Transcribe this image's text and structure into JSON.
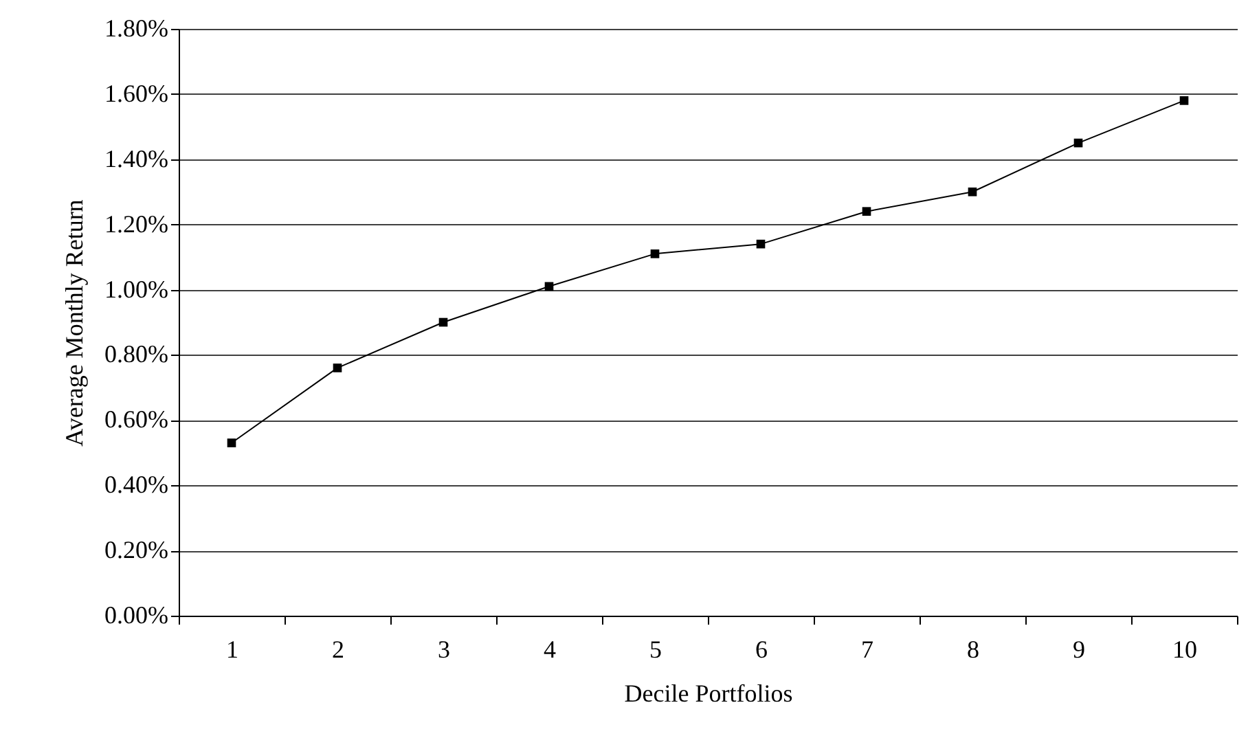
{
  "chart_data": {
    "type": "line",
    "xlabel": "Decile Portfolios",
    "ylabel": "Average Monthly Return",
    "categories": [
      "1",
      "2",
      "3",
      "4",
      "5",
      "6",
      "7",
      "8",
      "9",
      "10"
    ],
    "series": [
      {
        "color": "#000000",
        "values": [
          0.53,
          0.76,
          0.9,
          1.01,
          1.11,
          1.14,
          1.24,
          1.3,
          1.45,
          1.58
        ]
      }
    ],
    "ylim": [
      0,
      1.8
    ],
    "yticks": [
      {
        "value": 0,
        "label": "0.00%"
      },
      {
        "value": 0.2,
        "label": "0.20%"
      },
      {
        "value": 0.4,
        "label": "0.40%"
      },
      {
        "value": 0.6,
        "label": "0.60%"
      },
      {
        "value": 0.8,
        "label": "0.80%"
      },
      {
        "value": 1.0,
        "label": "1.00%"
      },
      {
        "value": 1.2,
        "label": "1.20%"
      },
      {
        "value": 1.4,
        "label": "1.40%"
      },
      {
        "value": 1.6,
        "label": "1.60%"
      },
      {
        "value": 1.8,
        "label": "1.80%"
      }
    ],
    "grid": "y",
    "marker": "square",
    "line_style": "solid"
  }
}
